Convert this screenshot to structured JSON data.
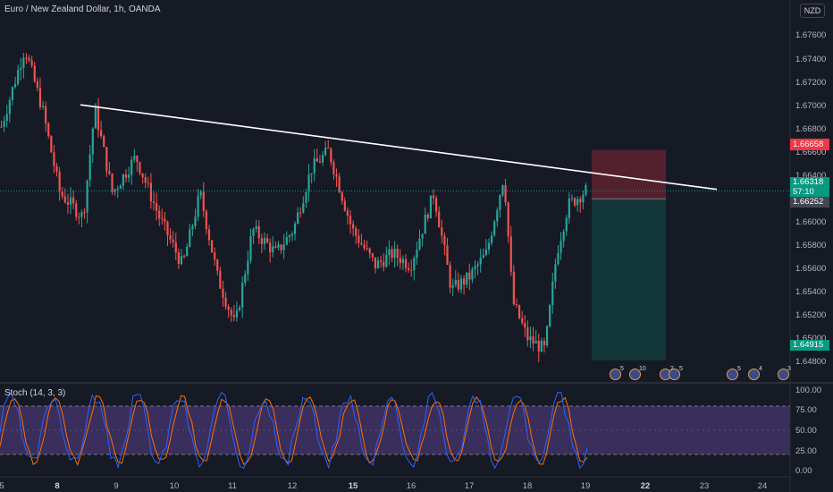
{
  "header": {
    "symbol_title": "Euro / New Zealand Dollar, 1h, OANDA",
    "currency_badge": "NZD"
  },
  "indicator": {
    "title": "Stoch (14, 3, 3)"
  },
  "price_axis": {
    "ticks": [
      "1.67600",
      "1.67400",
      "1.67200",
      "1.67000",
      "1.66800",
      "1.66600",
      "1.66400",
      "1.66000",
      "1.65800",
      "1.65600",
      "1.65400",
      "1.65200",
      "1.65000",
      "1.64800"
    ],
    "stop_loss_price": "1.66658",
    "current_price": "1.66318",
    "countdown": "57:10",
    "entry_price": "1.66252",
    "target_price": "1.64915",
    "colors": {
      "stop": "#f23645",
      "current": "#089981",
      "entry": "#434651",
      "target": "#089981"
    }
  },
  "stoch_axis": {
    "ticks": [
      "100.00",
      "75.00",
      "50.00",
      "25.00",
      "0.00"
    ]
  },
  "time_axis": {
    "ticks": [
      {
        "label": "5",
        "bold": false
      },
      {
        "label": "8",
        "bold": true
      },
      {
        "label": "9",
        "bold": false
      },
      {
        "label": "10",
        "bold": false
      },
      {
        "label": "11",
        "bold": false
      },
      {
        "label": "12",
        "bold": false
      },
      {
        "label": "15",
        "bold": true
      },
      {
        "label": "16",
        "bold": false
      },
      {
        "label": "17",
        "bold": false
      },
      {
        "label": "18",
        "bold": false
      },
      {
        "label": "19",
        "bold": false
      },
      {
        "label": "22",
        "bold": true
      },
      {
        "label": "23",
        "bold": false
      },
      {
        "label": "24",
        "bold": false
      }
    ]
  },
  "events": [
    {
      "count": "5"
    },
    {
      "count": "10"
    },
    {
      "count": "2"
    },
    {
      "count": "5"
    },
    {
      "count": "5"
    },
    {
      "count": "4"
    },
    {
      "count": "3"
    }
  ],
  "chart_data": {
    "type": "candlestick",
    "title": "Euro / New Zealand Dollar, 1h, OANDA",
    "ylim": [
      1.6475,
      1.6775
    ],
    "up_color": "#26a69a",
    "down_color": "#ef5350",
    "price_path": [
      {
        "t": 0,
        "p": 1.6685
      },
      {
        "t": 0.04,
        "p": 1.675
      },
      {
        "t": 0.07,
        "p": 1.67
      },
      {
        "t": 0.1,
        "p": 1.663
      },
      {
        "t": 0.14,
        "p": 1.661
      },
      {
        "t": 0.16,
        "p": 1.67
      },
      {
        "t": 0.19,
        "p": 1.663
      },
      {
        "t": 0.23,
        "p": 1.666
      },
      {
        "t": 0.27,
        "p": 1.661
      },
      {
        "t": 0.31,
        "p": 1.657
      },
      {
        "t": 0.34,
        "p": 1.663
      },
      {
        "t": 0.37,
        "p": 1.656
      },
      {
        "t": 0.4,
        "p": 1.652
      },
      {
        "t": 0.43,
        "p": 1.66
      },
      {
        "t": 0.47,
        "p": 1.658
      },
      {
        "t": 0.5,
        "p": 1.66
      },
      {
        "t": 0.53,
        "p": 1.665
      },
      {
        "t": 0.56,
        "p": 1.6665
      },
      {
        "t": 0.6,
        "p": 1.66
      },
      {
        "t": 0.64,
        "p": 1.657
      },
      {
        "t": 0.67,
        "p": 1.658
      },
      {
        "t": 0.7,
        "p": 1.657
      },
      {
        "t": 0.74,
        "p": 1.663
      },
      {
        "t": 0.77,
        "p": 1.655
      },
      {
        "t": 0.8,
        "p": 1.656
      },
      {
        "t": 0.83,
        "p": 1.658
      },
      {
        "t": 0.86,
        "p": 1.6645
      },
      {
        "t": 0.875,
        "p": 1.654
      },
      {
        "t": 0.9,
        "p": 1.651
      },
      {
        "t": 0.93,
        "p": 1.65
      },
      {
        "t": 0.95,
        "p": 1.658
      },
      {
        "t": 0.97,
        "p": 1.662
      },
      {
        "t": 1.0,
        "p": 1.6632
      }
    ],
    "trendline": {
      "start": {
        "date": "8",
        "price": 1.6703
      },
      "end": {
        "date": "22",
        "price": 1.6633
      }
    },
    "position": {
      "type": "short",
      "entry": 1.66252,
      "stop_loss": 1.66658,
      "take_profit": 1.64915
    },
    "stochastic": {
      "name": "Stoch (14, 3, 3)",
      "ylim": [
        0,
        100
      ],
      "upper_band": 80,
      "lower_band": 20
    }
  }
}
